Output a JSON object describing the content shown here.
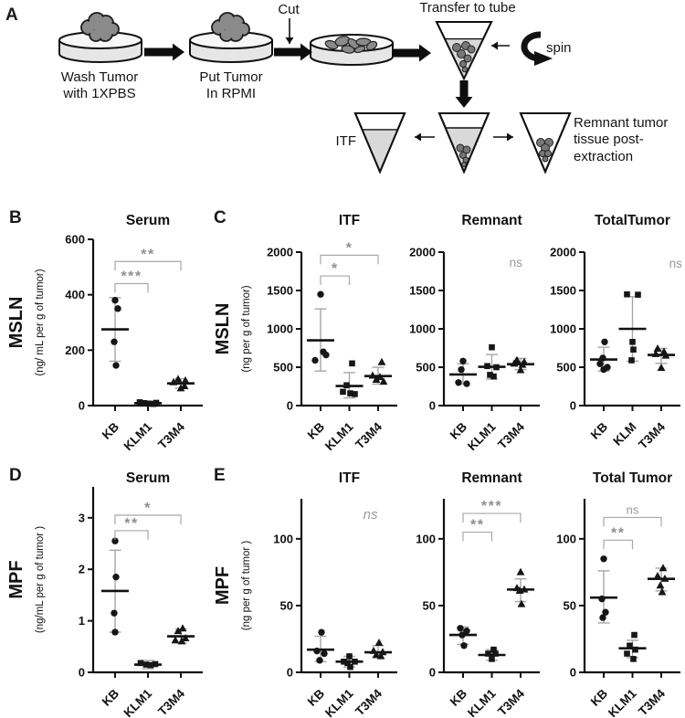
{
  "panels": {
    "a": "A",
    "b": "B",
    "c": "C",
    "d": "D",
    "e": "E"
  },
  "panelA": {
    "steps": {
      "wash": "Wash Tumor\nwith 1XPBS",
      "rpmi": "Put Tumor\nIn RPMI",
      "cut": "Cut",
      "transfer": "Transfer to tube",
      "spin": "spin",
      "itf": "ITF",
      "remnant": "Remnant tumor\ntissue post-\nextraction"
    }
  },
  "colors": {
    "point": "#161616",
    "mean": "#111111",
    "error": "#a6a6a6",
    "sig": "#8f8f8f",
    "ns": "#9a9a9a",
    "axis": "#111111",
    "tumor": "#8a8a8a",
    "liquid": "#d9d9d9"
  },
  "chart_data": [
    {
      "id": "serum_msln",
      "type": "scatter",
      "title": "Serum",
      "ylabel": "MSLN",
      "ysub": "(ng/ mL per g of tumor)",
      "yticks": [
        0,
        200,
        400,
        600
      ],
      "ylim": [
        0,
        600
      ],
      "categories": [
        "KB",
        "KLM1",
        "T3M4"
      ],
      "groups": [
        {
          "label": "KB",
          "marker": "circle",
          "points": [
            380,
            350,
            230,
            145
          ],
          "dx": [
            0,
            3,
            -1,
            1
          ],
          "mean": 275,
          "lo": 160,
          "hi": 390
        },
        {
          "label": "KLM1",
          "marker": "square",
          "points": [
            12,
            9,
            7,
            6,
            10
          ],
          "dx": [
            -9,
            -4,
            1,
            6,
            9
          ],
          "mean": 9,
          "lo": 3,
          "hi": 15
        },
        {
          "label": "T3M4",
          "marker": "triangle",
          "points": [
            95,
            90,
            84,
            70,
            62
          ],
          "dx": [
            -3,
            5,
            -8,
            4,
            0
          ],
          "mean": 80,
          "lo": 63,
          "hi": 97
        }
      ],
      "annotations": [
        {
          "type": "bracket",
          "from": 0,
          "to": 1,
          "label": "***",
          "y": 440
        },
        {
          "type": "bracket",
          "from": 0,
          "to": 2,
          "label": "**",
          "y": 520
        }
      ]
    },
    {
      "id": "itf_msln",
      "type": "scatter",
      "title": "ITF",
      "ylabel": "MSLN",
      "ysub": "(ng per g of tumor)",
      "yticks": [
        0,
        500,
        1000,
        1500,
        2000
      ],
      "ylim": [
        0,
        2000
      ],
      "categories": [
        "KB",
        "KLM1",
        "T3M4"
      ],
      "groups": [
        {
          "label": "KB",
          "marker": "circle",
          "points": [
            1450,
            700,
            660,
            590
          ],
          "dx": [
            0,
            3,
            6,
            -6
          ],
          "mean": 850,
          "lo": 450,
          "hi": 1260
        },
        {
          "label": "KLM1",
          "marker": "square",
          "points": [
            550,
            265,
            180,
            160,
            150
          ],
          "dx": [
            3,
            -3,
            -7,
            1,
            6
          ],
          "mean": 255,
          "lo": 100,
          "hi": 430
        },
        {
          "label": "T3M4",
          "marker": "triangle",
          "points": [
            565,
            390,
            370,
            335,
            310
          ],
          "dx": [
            4,
            -6,
            2,
            -2,
            6
          ],
          "mean": 385,
          "lo": 280,
          "hi": 500
        }
      ],
      "annotations": [
        {
          "type": "bracket",
          "from": 0,
          "to": 1,
          "label": "*",
          "y": 1690
        },
        {
          "type": "bracket",
          "from": 0,
          "to": 2,
          "label": "*",
          "y": 1960
        }
      ]
    },
    {
      "id": "remnant_msln",
      "type": "scatter",
      "title": "Remnant",
      "ylabel": "",
      "ysub": "",
      "yticks": [
        0,
        500,
        1000,
        1500,
        2000
      ],
      "ylim": [
        0,
        2000
      ],
      "categories": [
        "KB",
        "KLM1",
        "T3M4"
      ],
      "groups": [
        {
          "label": "KB",
          "marker": "circle",
          "points": [
            580,
            470,
            300,
            285
          ],
          "dx": [
            0,
            -2,
            -5,
            4
          ],
          "mean": 405,
          "lo": 280,
          "hi": 545
        },
        {
          "label": "KLM1",
          "marker": "square",
          "points": [
            760,
            515,
            500,
            400,
            380
          ],
          "dx": [
            0,
            -5,
            5,
            -2,
            2
          ],
          "mean": 505,
          "lo": 345,
          "hi": 665
        },
        {
          "label": "T3M4",
          "marker": "triangle",
          "points": [
            590,
            565,
            545,
            530,
            460
          ],
          "dx": [
            -4,
            4,
            -7,
            2,
            0
          ],
          "mean": 540,
          "lo": 470,
          "hi": 615
        }
      ],
      "annotations": [
        {
          "type": "ns",
          "label": "ns",
          "xf": 0.75,
          "y": 1810,
          "italic": false
        }
      ]
    },
    {
      "id": "total_msln",
      "type": "scatter",
      "title": "TotalTumor",
      "ylabel": "",
      "ysub": "",
      "yticks": [
        0,
        500,
        1000,
        1500,
        2000
      ],
      "ylim": [
        0,
        2000
      ],
      "categories": [
        "KB",
        "KLM",
        "T3M4"
      ],
      "groups": [
        {
          "label": "KB",
          "marker": "circle",
          "points": [
            830,
            620,
            545,
            500,
            470
          ],
          "dx": [
            1,
            -1,
            -4,
            4,
            0
          ],
          "mean": 600,
          "lo": 450,
          "hi": 760
        },
        {
          "label": "KLM",
          "marker": "square",
          "points": [
            1450,
            1445,
            830,
            730,
            590
          ],
          "dx": [
            -6,
            6,
            0,
            1,
            -1
          ],
          "mean": 1000,
          "lo": 580,
          "hi": 1420
        },
        {
          "label": "T3M4",
          "marker": "triangle",
          "points": [
            740,
            700,
            670,
            650,
            490
          ],
          "dx": [
            -4,
            3,
            -6,
            5,
            0
          ],
          "mean": 660,
          "lo": 550,
          "hi": 745
        }
      ],
      "annotations": [
        {
          "type": "ns",
          "label": "ns",
          "xf": 0.95,
          "y": 1800,
          "italic": false
        }
      ]
    },
    {
      "id": "serum_mpf",
      "type": "scatter",
      "title": "Serum",
      "ylabel": "MPF",
      "ysub": "(ng/mL per g of tumor )",
      "yticks": [
        0,
        1,
        2,
        3
      ],
      "ylim": [
        0,
        3.6
      ],
      "axis_top": 3.6,
      "categories": [
        "KB",
        "KLM1",
        "T3M4"
      ],
      "groups": [
        {
          "label": "KB",
          "marker": "circle",
          "points": [
            2.55,
            1.85,
            1.15,
            0.78
          ],
          "dx": [
            0,
            1,
            -1,
            0
          ],
          "mean": 1.58,
          "lo": 0.78,
          "hi": 2.37
        },
        {
          "label": "KLM1",
          "marker": "square",
          "points": [
            0.18,
            0.15,
            0.14,
            0.16
          ],
          "dx": [
            -8,
            -2,
            3,
            8
          ],
          "mean": 0.15,
          "lo": 0.07,
          "hi": 0.23
        },
        {
          "label": "T3M4",
          "marker": "triangle",
          "points": [
            0.85,
            0.8,
            0.66,
            0.62,
            0.6
          ],
          "dx": [
            2,
            -3,
            5,
            -6,
            1
          ],
          "mean": 0.7,
          "lo": 0.57,
          "hi": 0.84
        }
      ],
      "annotations": [
        {
          "type": "bracket",
          "from": 0,
          "to": 1,
          "label": "**",
          "y": 2.75
        },
        {
          "type": "bracket",
          "from": 0,
          "to": 2,
          "label": "*",
          "y": 3.05
        }
      ]
    },
    {
      "id": "itf_mpf",
      "type": "scatter",
      "title": "ITF",
      "ylabel": "MPF",
      "ysub": "(ng per g of tumor )",
      "yticks": [
        0,
        50,
        100
      ],
      "ylim": [
        0,
        130
      ],
      "axis_top": 130,
      "categories": [
        "KB",
        "KLM1",
        "T3M4"
      ],
      "groups": [
        {
          "label": "KB",
          "marker": "circle",
          "points": [
            30,
            16,
            14,
            9
          ],
          "dx": [
            1,
            -4,
            4,
            -1
          ],
          "mean": 17,
          "lo": 8,
          "hi": 27
        },
        {
          "label": "KLM1",
          "marker": "square",
          "points": [
            12,
            8,
            8,
            7,
            4
          ],
          "dx": [
            0,
            -6,
            6,
            -2,
            1
          ],
          "mean": 8,
          "lo": 4,
          "hi": 12
        },
        {
          "label": "T3M4",
          "marker": "triangle",
          "points": [
            22,
            16,
            15,
            13,
            12
          ],
          "dx": [
            1,
            -5,
            5,
            -2,
            3
          ],
          "mean": 15,
          "lo": 11,
          "hi": 20
        }
      ],
      "annotations": [
        {
          "type": "ns",
          "label": "ns",
          "xf": 0.72,
          "y": 115,
          "italic": true
        }
      ]
    },
    {
      "id": "remnant_mpf",
      "type": "scatter",
      "title": "Remnant",
      "ylabel": "",
      "ysub": "",
      "yticks": [
        0,
        50,
        100
      ],
      "ylim": [
        0,
        130
      ],
      "axis_top": 130,
      "categories": [
        "KB",
        "KLM1",
        "T3M4"
      ],
      "groups": [
        {
          "label": "KB",
          "marker": "circle",
          "points": [
            33,
            31,
            28,
            20
          ],
          "dx": [
            -3,
            4,
            -1,
            1
          ],
          "mean": 28,
          "lo": 21,
          "hi": 34
        },
        {
          "label": "KLM1",
          "marker": "square",
          "points": [
            17,
            14,
            14,
            10
          ],
          "dx": [
            2,
            -4,
            4,
            0
          ],
          "mean": 13,
          "lo": 9,
          "hi": 17
        },
        {
          "label": "T3M4",
          "marker": "triangle",
          "points": [
            75,
            63,
            62,
            61,
            51
          ],
          "dx": [
            0,
            -4,
            4,
            -1,
            1
          ],
          "mean": 62,
          "lo": 53,
          "hi": 70
        }
      ],
      "annotations": [
        {
          "type": "bracket",
          "from": 0,
          "to": 1,
          "label": "**",
          "y": 105
        },
        {
          "type": "bracket",
          "from": 0,
          "to": 2,
          "label": "***",
          "y": 119
        }
      ]
    },
    {
      "id": "total_mpf",
      "type": "scatter",
      "title": "Total Tumor",
      "ylabel": "",
      "ysub": "",
      "yticks": [
        0,
        50,
        100
      ],
      "ylim": [
        0,
        130
      ],
      "axis_top": 130,
      "categories": [
        "KB",
        "KLM1",
        "T3M4"
      ],
      "groups": [
        {
          "label": "KB",
          "marker": "circle",
          "points": [
            85,
            55,
            45,
            41
          ],
          "dx": [
            0,
            -2,
            2,
            -1
          ],
          "mean": 56,
          "lo": 37,
          "hi": 76
        },
        {
          "label": "KLM1",
          "marker": "square",
          "points": [
            28,
            20,
            17,
            14,
            10
          ],
          "dx": [
            2,
            -3,
            3,
            -6,
            1
          ],
          "mean": 18,
          "lo": 11,
          "hi": 24
        },
        {
          "label": "T3M4",
          "marker": "triangle",
          "points": [
            78,
            72,
            70,
            65,
            60
          ],
          "dx": [
            2,
            -4,
            4,
            -1,
            1
          ],
          "mean": 70,
          "lo": 61,
          "hi": 78
        }
      ],
      "annotations": [
        {
          "type": "bracket",
          "from": 0,
          "to": 1,
          "label": "**",
          "y": 99
        },
        {
          "type": "bracket",
          "from": 0,
          "to": 2,
          "label": "ns",
          "y": 116
        }
      ]
    }
  ]
}
